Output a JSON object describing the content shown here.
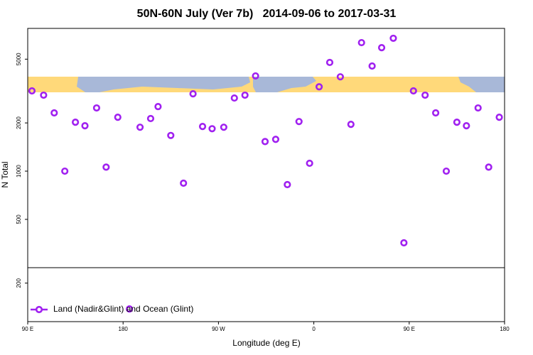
{
  "chart_data": {
    "type": "scatter",
    "title": "50N-60N July (Ver 7b)   2014-09-06 to 2017-03-31",
    "x_label": "Longitude (deg E)",
    "y_label": "N Total",
    "log_y": true,
    "xlim": [
      90,
      540
    ],
    "ylim": [
      115,
      7780
    ],
    "xticks": [
      {
        "value": 90,
        "label": "90 E"
      },
      180,
      {
        "value": 270,
        "label": "90 W"
      },
      {
        "value": 360,
        "label": "0"
      },
      {
        "value": 450,
        "label": "90 E"
      },
      {
        "value": 540,
        "label": "180"
      }
    ],
    "yticks": [
      200,
      500,
      1000,
      2000,
      5000
    ],
    "legend": "bottom-left",
    "series": [
      {
        "name": "Land (Nadir&Glint) and Ocean (Glint)",
        "color": "#a020f0",
        "x": [
          94,
          105,
          115,
          125,
          135,
          144,
          155,
          164,
          175,
          196,
          206,
          213,
          225,
          237,
          246,
          255,
          264,
          275,
          285,
          295,
          305,
          314,
          324,
          335,
          346,
          356,
          365,
          375,
          385,
          395,
          405,
          415,
          424,
          435,
          445,
          454,
          465,
          475,
          485,
          495,
          504,
          515,
          525,
          535,
          186
        ],
        "values": [
          3170,
          2980,
          2310,
          1000,
          2020,
          1920,
          2480,
          1060,
          2170,
          1880,
          2130,
          2530,
          1670,
          841,
          3040,
          1900,
          1840,
          1880,
          2860,
          2980,
          3930,
          1530,
          1580,
          824,
          2040,
          1120,
          3360,
          4770,
          3880,
          1960,
          6340,
          4530,
          5900,
          6750,
          357,
          3170,
          2980,
          2310,
          1000,
          2020,
          1920,
          2480,
          1060,
          2170,
          138
        ]
      }
    ]
  }
}
